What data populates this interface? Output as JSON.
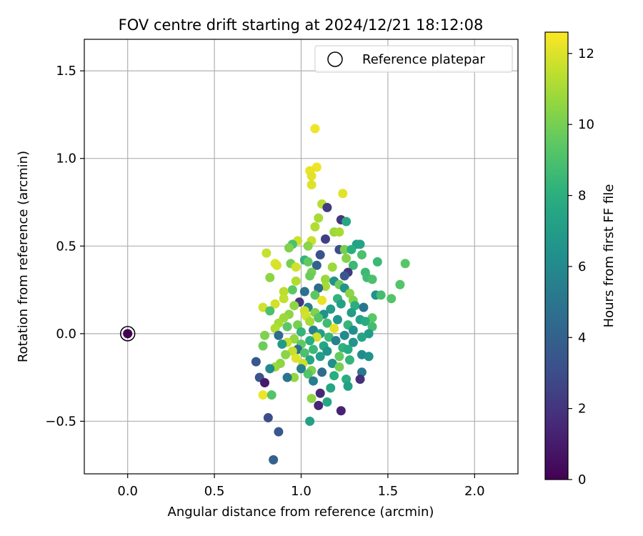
{
  "chart_data": {
    "type": "scatter",
    "title": "FOV centre drift starting at 2024/12/21 18:12:08",
    "xlabel": "Angular distance from reference (arcmin)",
    "ylabel": "Rotation from reference (arcmin)",
    "xlim": [
      -0.25,
      2.25
    ],
    "ylim": [
      -0.8,
      1.68
    ],
    "x_ticks": [
      0.0,
      0.5,
      1.0,
      1.5,
      2.0
    ],
    "x_tick_labels": [
      "0.0",
      "0.5",
      "1.0",
      "1.5",
      "2.0"
    ],
    "y_ticks": [
      -0.5,
      0.0,
      0.5,
      1.0,
      1.5
    ],
    "y_tick_labels": [
      "−0.5",
      "0.0",
      "0.5",
      "1.0",
      "1.5"
    ],
    "grid": true,
    "legend": {
      "placement": "top-right",
      "entries": [
        "Reference platepar"
      ]
    },
    "colorbar": {
      "label": "Hours from first FF file",
      "colormap": "viridis",
      "range": [
        0,
        12.6
      ],
      "ticks": [
        0,
        2,
        4,
        6,
        8,
        10,
        12
      ],
      "tick_labels": [
        "0",
        "2",
        "4",
        "6",
        "8",
        "10",
        "12"
      ]
    },
    "reference_point": {
      "x": 0.0,
      "y": 0.0,
      "hours": 0.0
    },
    "points": [
      {
        "x": 1.08,
        "y": 1.17,
        "h": 12.3
      },
      {
        "x": 1.09,
        "y": 0.95,
        "h": 12.3
      },
      {
        "x": 1.05,
        "y": 0.93,
        "h": 12.2
      },
      {
        "x": 1.06,
        "y": 0.9,
        "h": 12.1
      },
      {
        "x": 1.06,
        "y": 0.85,
        "h": 12.0
      },
      {
        "x": 1.24,
        "y": 0.8,
        "h": 12.1
      },
      {
        "x": 1.12,
        "y": 0.74,
        "h": 11.3
      },
      {
        "x": 1.15,
        "y": 0.72,
        "h": 2.2
      },
      {
        "x": 1.1,
        "y": 0.66,
        "h": 11.0
      },
      {
        "x": 1.23,
        "y": 0.65,
        "h": 2.0
      },
      {
        "x": 1.26,
        "y": 0.64,
        "h": 7.6
      },
      {
        "x": 1.08,
        "y": 0.61,
        "h": 11.2
      },
      {
        "x": 1.19,
        "y": 0.58,
        "h": 10.8
      },
      {
        "x": 1.22,
        "y": 0.58,
        "h": 11.0
      },
      {
        "x": 1.14,
        "y": 0.54,
        "h": 2.4
      },
      {
        "x": 0.98,
        "y": 0.53,
        "h": 11.7
      },
      {
        "x": 1.06,
        "y": 0.53,
        "h": 11.6
      },
      {
        "x": 0.95,
        "y": 0.51,
        "h": 9.0
      },
      {
        "x": 1.32,
        "y": 0.51,
        "h": 7.2
      },
      {
        "x": 1.34,
        "y": 0.51,
        "h": 7.4
      },
      {
        "x": 1.04,
        "y": 0.5,
        "h": 10.4
      },
      {
        "x": 0.93,
        "y": 0.49,
        "h": 10.2
      },
      {
        "x": 1.22,
        "y": 0.48,
        "h": 3.0
      },
      {
        "x": 1.25,
        "y": 0.48,
        "h": 10.0
      },
      {
        "x": 1.29,
        "y": 0.48,
        "h": 8.0
      },
      {
        "x": 1.11,
        "y": 0.45,
        "h": 3.2
      },
      {
        "x": 0.8,
        "y": 0.46,
        "h": 11.6
      },
      {
        "x": 1.35,
        "y": 0.45,
        "h": 9.0
      },
      {
        "x": 1.26,
        "y": 0.43,
        "h": 10.3
      },
      {
        "x": 1.02,
        "y": 0.42,
        "h": 8.2
      },
      {
        "x": 1.04,
        "y": 0.41,
        "h": 9.5
      },
      {
        "x": 1.44,
        "y": 0.41,
        "h": 8.5
      },
      {
        "x": 0.85,
        "y": 0.4,
        "h": 12.0
      },
      {
        "x": 0.86,
        "y": 0.39,
        "h": 11.9
      },
      {
        "x": 0.94,
        "y": 0.4,
        "h": 10.0
      },
      {
        "x": 0.97,
        "y": 0.38,
        "h": 11.8
      },
      {
        "x": 1.3,
        "y": 0.39,
        "h": 8.5
      },
      {
        "x": 1.09,
        "y": 0.39,
        "h": 4.0
      },
      {
        "x": 1.18,
        "y": 0.38,
        "h": 10.8
      },
      {
        "x": 1.6,
        "y": 0.4,
        "h": 9.3
      },
      {
        "x": 1.27,
        "y": 0.35,
        "h": 2.1
      },
      {
        "x": 1.06,
        "y": 0.35,
        "h": 10.0
      },
      {
        "x": 1.37,
        "y": 0.35,
        "h": 8.6
      },
      {
        "x": 1.05,
        "y": 0.33,
        "h": 9.8
      },
      {
        "x": 1.25,
        "y": 0.33,
        "h": 3.5
      },
      {
        "x": 0.82,
        "y": 0.32,
        "h": 10.5
      },
      {
        "x": 1.14,
        "y": 0.31,
        "h": 10.7
      },
      {
        "x": 1.38,
        "y": 0.32,
        "h": 8.7
      },
      {
        "x": 1.41,
        "y": 0.31,
        "h": 9.0
      },
      {
        "x": 0.97,
        "y": 0.3,
        "h": 11.2
      },
      {
        "x": 1.19,
        "y": 0.3,
        "h": 6.4
      },
      {
        "x": 1.22,
        "y": 0.28,
        "h": 9.8
      },
      {
        "x": 1.57,
        "y": 0.28,
        "h": 9.2
      },
      {
        "x": 1.14,
        "y": 0.27,
        "h": 11.0
      },
      {
        "x": 1.1,
        "y": 0.26,
        "h": 4.5
      },
      {
        "x": 1.25,
        "y": 0.26,
        "h": 6.6
      },
      {
        "x": 0.95,
        "y": 0.25,
        "h": 9.4
      },
      {
        "x": 0.9,
        "y": 0.24,
        "h": 11.4
      },
      {
        "x": 1.02,
        "y": 0.24,
        "h": 4.8
      },
      {
        "x": 1.28,
        "y": 0.23,
        "h": 10.5
      },
      {
        "x": 1.08,
        "y": 0.22,
        "h": 9.4
      },
      {
        "x": 1.43,
        "y": 0.22,
        "h": 6.4
      },
      {
        "x": 1.46,
        "y": 0.22,
        "h": 8.8
      },
      {
        "x": 1.52,
        "y": 0.2,
        "h": 9.2
      },
      {
        "x": 0.9,
        "y": 0.2,
        "h": 11.5
      },
      {
        "x": 1.21,
        "y": 0.2,
        "h": 8.3
      },
      {
        "x": 1.12,
        "y": 0.19,
        "h": 12.2
      },
      {
        "x": 0.99,
        "y": 0.18,
        "h": 2.0
      },
      {
        "x": 1.3,
        "y": 0.19,
        "h": 10.2
      },
      {
        "x": 0.85,
        "y": 0.17,
        "h": 11.8
      },
      {
        "x": 1.23,
        "y": 0.17,
        "h": 7.2
      },
      {
        "x": 0.96,
        "y": 0.16,
        "h": 10.5
      },
      {
        "x": 1.04,
        "y": 0.15,
        "h": 5.5
      },
      {
        "x": 1.31,
        "y": 0.16,
        "h": 8.0
      },
      {
        "x": 1.36,
        "y": 0.15,
        "h": 5.0
      },
      {
        "x": 0.78,
        "y": 0.15,
        "h": 11.8
      },
      {
        "x": 1.17,
        "y": 0.14,
        "h": 7.0
      },
      {
        "x": 0.82,
        "y": 0.13,
        "h": 9.0
      },
      {
        "x": 1.02,
        "y": 0.13,
        "h": 11.7
      },
      {
        "x": 1.08,
        "y": 0.12,
        "h": 10.2
      },
      {
        "x": 1.29,
        "y": 0.12,
        "h": 7.0
      },
      {
        "x": 0.93,
        "y": 0.11,
        "h": 10.5
      },
      {
        "x": 1.13,
        "y": 0.11,
        "h": 6.4
      },
      {
        "x": 1.03,
        "y": 0.1,
        "h": 11.8
      },
      {
        "x": 1.1,
        "y": 0.09,
        "h": 9.2
      },
      {
        "x": 1.41,
        "y": 0.09,
        "h": 9.4
      },
      {
        "x": 0.9,
        "y": 0.09,
        "h": 10.8
      },
      {
        "x": 1.21,
        "y": 0.08,
        "h": 6.5
      },
      {
        "x": 1.34,
        "y": 0.08,
        "h": 7.3
      },
      {
        "x": 1.05,
        "y": 0.07,
        "h": 11.0
      },
      {
        "x": 0.87,
        "y": 0.06,
        "h": 11.0
      },
      {
        "x": 1.15,
        "y": 0.06,
        "h": 8.7
      },
      {
        "x": 1.37,
        "y": 0.07,
        "h": 7.9
      },
      {
        "x": 0.98,
        "y": 0.05,
        "h": 10.0
      },
      {
        "x": 1.27,
        "y": 0.05,
        "h": 8.4
      },
      {
        "x": 1.41,
        "y": 0.04,
        "h": 8.8
      },
      {
        "x": 0.92,
        "y": 0.04,
        "h": 9.4
      },
      {
        "x": 1.19,
        "y": 0.03,
        "h": 12.1
      },
      {
        "x": 0.85,
        "y": 0.03,
        "h": 11.2
      },
      {
        "x": 1.07,
        "y": 0.02,
        "h": 5.6
      },
      {
        "x": 1.3,
        "y": 0.02,
        "h": 6.3
      },
      {
        "x": 1.0,
        "y": 0.01,
        "h": 8.3
      },
      {
        "x": 1.11,
        "y": 0.0,
        "h": 7.0
      },
      {
        "x": 1.39,
        "y": 0.0,
        "h": 6.9
      },
      {
        "x": 0.87,
        "y": -0.01,
        "h": 4.5
      },
      {
        "x": 1.25,
        "y": -0.01,
        "h": 6.0
      },
      {
        "x": 0.79,
        "y": -0.01,
        "h": 10.2
      },
      {
        "x": 1.09,
        "y": -0.02,
        "h": 11.8
      },
      {
        "x": 1.16,
        "y": -0.02,
        "h": 8.5
      },
      {
        "x": 1.35,
        "y": -0.02,
        "h": 7.5
      },
      {
        "x": 0.96,
        "y": -0.03,
        "h": 10.6
      },
      {
        "x": 1.05,
        "y": -0.04,
        "h": 8.0
      },
      {
        "x": 1.2,
        "y": -0.04,
        "h": 5.5
      },
      {
        "x": 0.92,
        "y": -0.05,
        "h": 11.5
      },
      {
        "x": 1.3,
        "y": -0.05,
        "h": 6.5
      },
      {
        "x": 0.89,
        "y": -0.06,
        "h": 6.8
      },
      {
        "x": 1.0,
        "y": -0.06,
        "h": 9.5
      },
      {
        "x": 0.78,
        "y": -0.07,
        "h": 9.8
      },
      {
        "x": 1.13,
        "y": -0.07,
        "h": 7.5
      },
      {
        "x": 1.24,
        "y": -0.08,
        "h": 8.2
      },
      {
        "x": 0.98,
        "y": -0.09,
        "h": 4.6
      },
      {
        "x": 1.07,
        "y": -0.09,
        "h": 8.5
      },
      {
        "x": 1.27,
        "y": -0.09,
        "h": 7.8
      },
      {
        "x": 0.95,
        "y": -0.1,
        "h": 11.6
      },
      {
        "x": 1.15,
        "y": -0.1,
        "h": 6.6
      },
      {
        "x": 1.02,
        "y": -0.11,
        "h": 9.0
      },
      {
        "x": 0.91,
        "y": -0.12,
        "h": 10.4
      },
      {
        "x": 1.35,
        "y": -0.12,
        "h": 6.1
      },
      {
        "x": 1.11,
        "y": -0.13,
        "h": 7.0
      },
      {
        "x": 1.22,
        "y": -0.13,
        "h": 9.6
      },
      {
        "x": 1.39,
        "y": -0.13,
        "h": 6.4
      },
      {
        "x": 0.97,
        "y": -0.14,
        "h": 12.0
      },
      {
        "x": 1.05,
        "y": -0.15,
        "h": 7.5
      },
      {
        "x": 1.28,
        "y": -0.15,
        "h": 8.3
      },
      {
        "x": 0.74,
        "y": -0.16,
        "h": 3.5
      },
      {
        "x": 0.88,
        "y": -0.17,
        "h": 10.5
      },
      {
        "x": 1.01,
        "y": -0.17,
        "h": 11.7
      },
      {
        "x": 1.18,
        "y": -0.17,
        "h": 6.2
      },
      {
        "x": 0.85,
        "y": -0.19,
        "h": 10.8
      },
      {
        "x": 1.22,
        "y": -0.19,
        "h": 10.0
      },
      {
        "x": 0.82,
        "y": -0.2,
        "h": 6.0
      },
      {
        "x": 1.0,
        "y": -0.2,
        "h": 5.5
      },
      {
        "x": 1.06,
        "y": -0.21,
        "h": 10.2
      },
      {
        "x": 1.12,
        "y": -0.22,
        "h": 4.5
      },
      {
        "x": 1.35,
        "y": -0.22,
        "h": 5.2
      },
      {
        "x": 1.04,
        "y": -0.23,
        "h": 9.2
      },
      {
        "x": 1.19,
        "y": -0.24,
        "h": 8.0
      },
      {
        "x": 0.96,
        "y": -0.25,
        "h": 10.6
      },
      {
        "x": 0.76,
        "y": -0.25,
        "h": 3.3
      },
      {
        "x": 0.92,
        "y": -0.25,
        "h": 5.0
      },
      {
        "x": 1.26,
        "y": -0.26,
        "h": 8.0
      },
      {
        "x": 1.34,
        "y": -0.26,
        "h": 1.8
      },
      {
        "x": 1.07,
        "y": -0.27,
        "h": 5.4
      },
      {
        "x": 0.79,
        "y": -0.28,
        "h": 1.0
      },
      {
        "x": 1.27,
        "y": -0.3,
        "h": 7.2
      },
      {
        "x": 1.17,
        "y": -0.31,
        "h": 7.5
      },
      {
        "x": 1.11,
        "y": -0.34,
        "h": 1.5
      },
      {
        "x": 0.78,
        "y": -0.35,
        "h": 12.3
      },
      {
        "x": 0.83,
        "y": -0.35,
        "h": 9.2
      },
      {
        "x": 1.06,
        "y": -0.37,
        "h": 10.5
      },
      {
        "x": 1.15,
        "y": -0.39,
        "h": 7.6
      },
      {
        "x": 1.1,
        "y": -0.41,
        "h": 1.4
      },
      {
        "x": 1.23,
        "y": -0.44,
        "h": 1.3
      },
      {
        "x": 0.81,
        "y": -0.48,
        "h": 3.0
      },
      {
        "x": 1.05,
        "y": -0.5,
        "h": 7.2
      },
      {
        "x": 0.87,
        "y": -0.56,
        "h": 3.5
      },
      {
        "x": 0.84,
        "y": -0.72,
        "h": 4.0
      }
    ]
  }
}
